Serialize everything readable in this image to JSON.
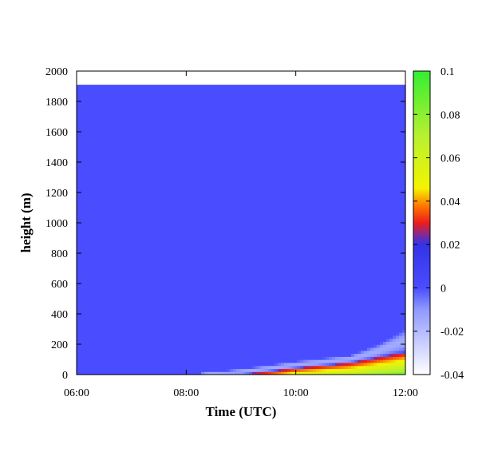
{
  "chart_data": {
    "type": "heatmap",
    "title": "",
    "xlabel": "Time (UTC)",
    "ylabel": "height (m)",
    "x_ticks": [
      "06:00",
      "08:00",
      "10:00",
      "12:00"
    ],
    "x_range_hours": [
      6,
      12
    ],
    "y_ticks": [
      "0",
      "200",
      "400",
      "600",
      "800",
      "1000",
      "1200",
      "1400",
      "1600",
      "1800",
      "2000"
    ],
    "ylim": [
      0,
      2000
    ],
    "data_top_height": 1910,
    "colorbar": {
      "ticks": [
        "0.1",
        "0.08",
        "0.06",
        "0.04",
        "0.02",
        "0",
        "-0.02",
        "-0.04"
      ],
      "range": [
        -0.04,
        0.1
      ],
      "stops": [
        {
          "value": -0.04,
          "color": "#ffffff"
        },
        {
          "value": -0.01,
          "color": "#8f99ff"
        },
        {
          "value": 0.0,
          "color": "#4a4dff"
        },
        {
          "value": 0.02,
          "color": "#3333e6"
        },
        {
          "value": 0.024,
          "color": "#7a2aa0"
        },
        {
          "value": 0.03,
          "color": "#ee1c1c"
        },
        {
          "value": 0.038,
          "color": "#ff7a00"
        },
        {
          "value": 0.046,
          "color": "#f4f400"
        },
        {
          "value": 0.07,
          "color": "#b8f030"
        },
        {
          "value": 0.1,
          "color": "#33ee33"
        }
      ]
    },
    "field": {
      "background_value": 0,
      "plume_top": [
        {
          "x": 8.0,
          "height": 0
        },
        {
          "x": 9.0,
          "height": 40
        },
        {
          "x": 10.0,
          "height": 90
        },
        {
          "x": 11.0,
          "height": 130
        },
        {
          "x": 11.5,
          "height": 200
        },
        {
          "x": 12.0,
          "height": 300
        }
      ],
      "core_top": [
        {
          "x": 9.0,
          "height": 0
        },
        {
          "x": 10.0,
          "height": 45
        },
        {
          "x": 11.0,
          "height": 80
        },
        {
          "x": 12.0,
          "height": 150
        }
      ],
      "max_surface_value": [
        {
          "x": 9.0,
          "value": 0.02
        },
        {
          "x": 10.0,
          "value": 0.055
        },
        {
          "x": 11.0,
          "value": 0.07
        },
        {
          "x": 12.0,
          "value": 0.085
        }
      ],
      "min_value_above_core": -0.015
    }
  }
}
